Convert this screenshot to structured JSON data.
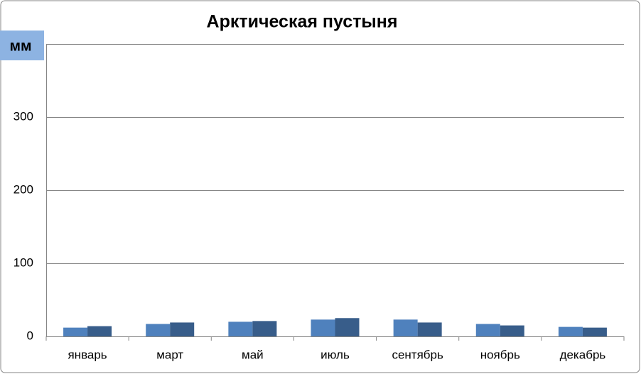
{
  "chart_data": {
    "type": "bar",
    "title": "Арктическая пустыня",
    "y_label": "мм",
    "categories": [
      "январь",
      "март",
      "май",
      "июль",
      "сентябрь",
      "ноябрь",
      "декабрь"
    ],
    "series": [
      {
        "color": "#4f81bd",
        "values": [
          12,
          17,
          20,
          23,
          23,
          17,
          13
        ]
      },
      {
        "color": "#385d8a",
        "values": [
          14,
          19,
          21,
          25,
          19,
          15,
          12
        ]
      }
    ],
    "ylim": [
      0,
      400
    ],
    "yticks": [
      0,
      100,
      200,
      300
    ],
    "grid": true
  }
}
